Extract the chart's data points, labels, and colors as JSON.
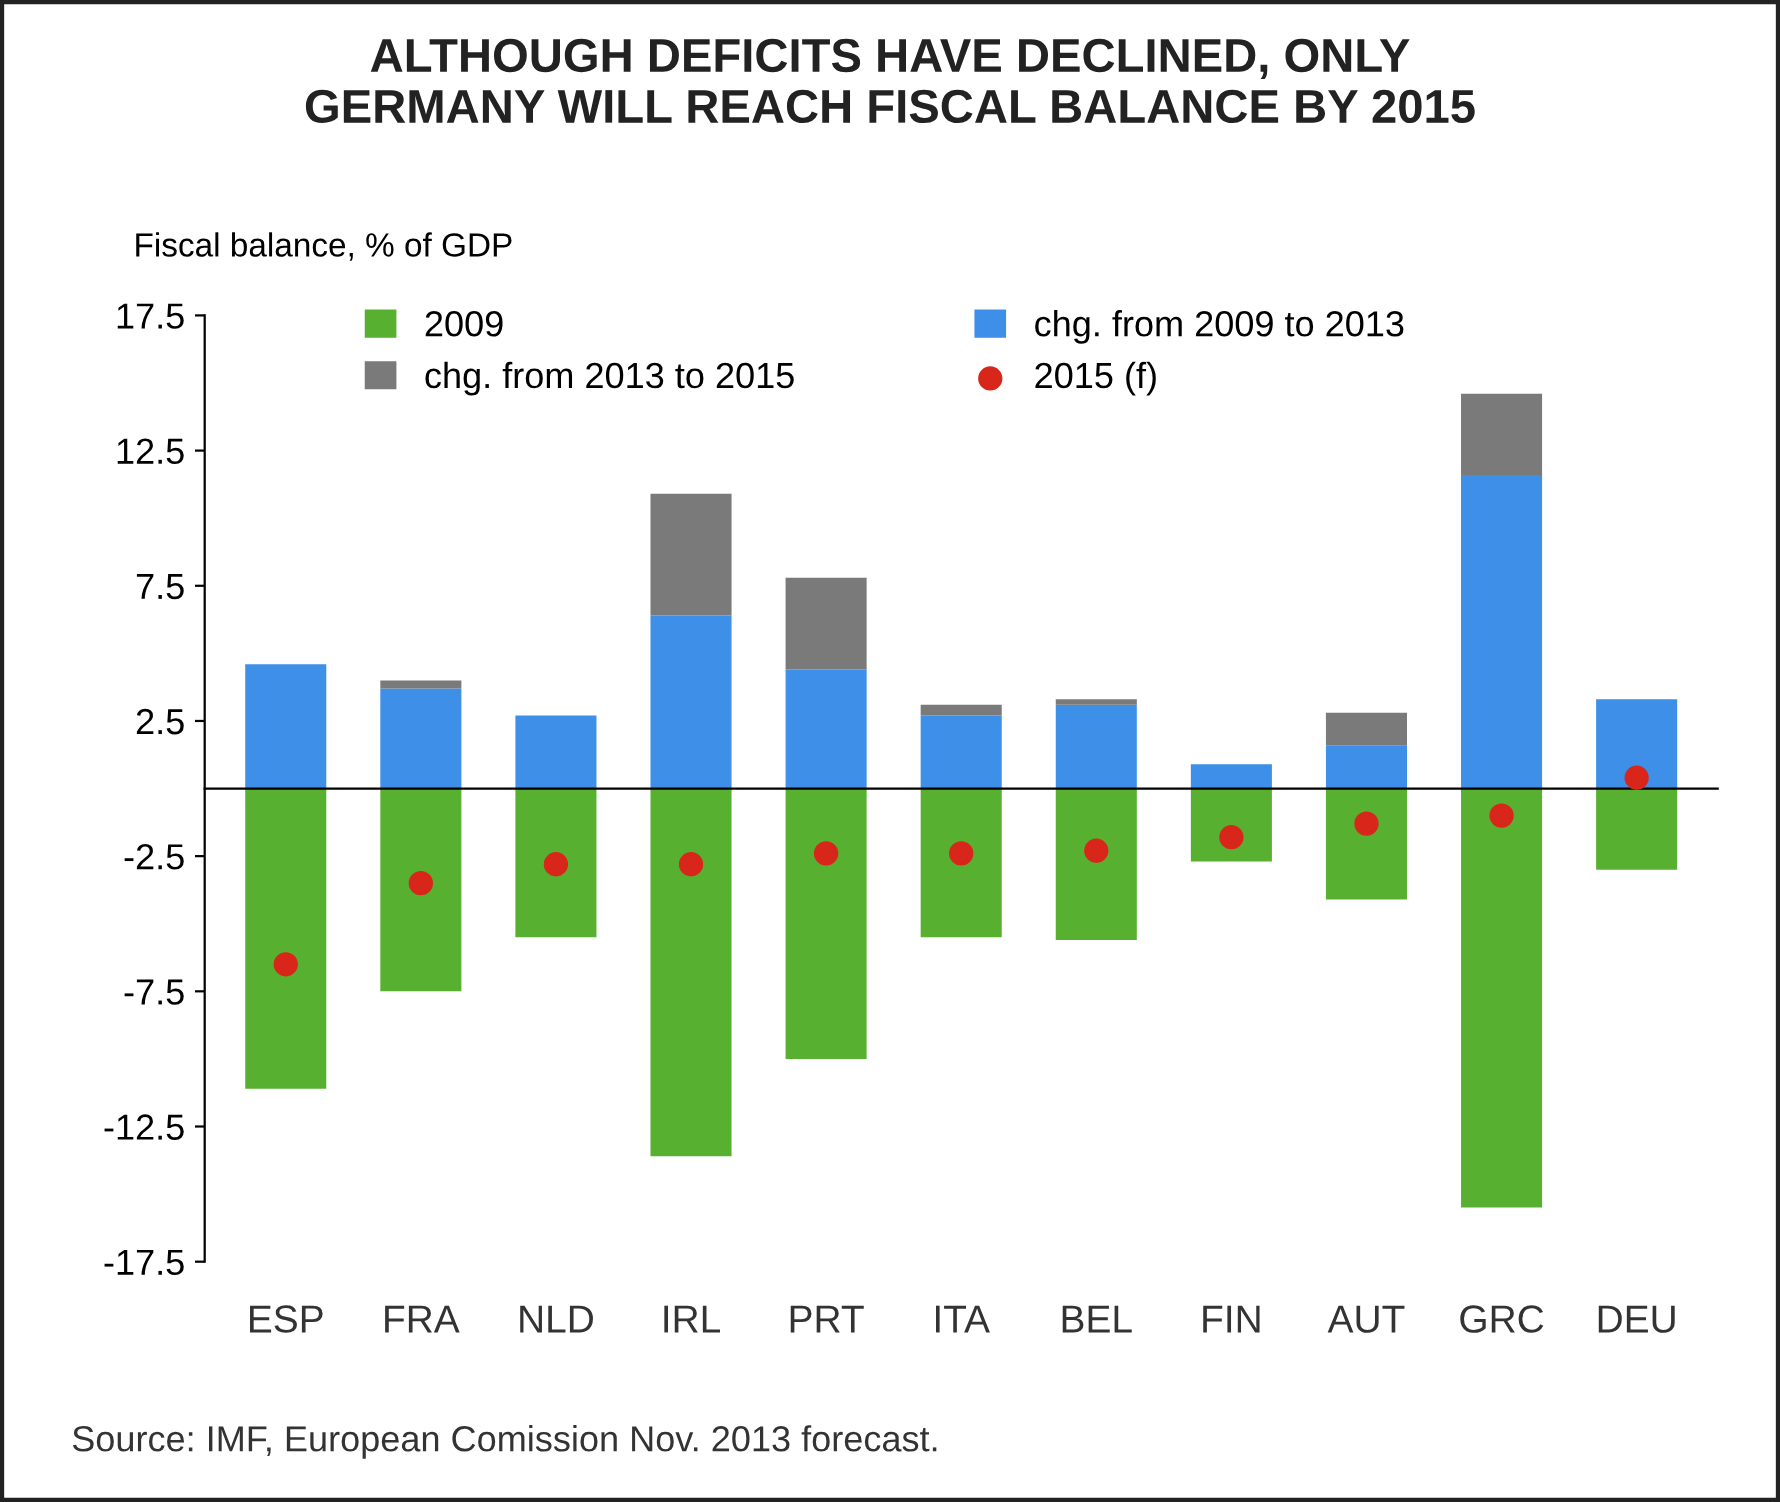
{
  "chart_data": {
    "type": "bar",
    "stacked": true,
    "title": "ALTHOUGH DEFICITS HAVE DECLINED, ONLY\nGERMANY WILL REACH FISCAL BALANCE BY 2015",
    "ylabel": "Fiscal balance, % of GDP",
    "categories": [
      "ESP",
      "FRA",
      "NLD",
      "IRL",
      "PRT",
      "ITA",
      "BEL",
      "FIN",
      "AUT",
      "GRC",
      "DEU"
    ],
    "series": [
      {
        "name": "2009",
        "color": "#58b031",
        "values": [
          -11.1,
          -7.5,
          -5.5,
          -13.6,
          -10.0,
          -5.5,
          -5.6,
          -2.7,
          -4.1,
          -15.5,
          -3.0
        ]
      },
      {
        "name": "chg. from 2009 to 2013",
        "color": "#3d8fe8",
        "values": [
          4.6,
          3.7,
          2.7,
          6.4,
          4.4,
          2.7,
          3.1,
          0.9,
          1.6,
          11.6,
          3.3
        ]
      },
      {
        "name": "chg. from 2013 to 2015",
        "color": "#7a7a7a",
        "values": [
          null,
          0.3,
          null,
          4.5,
          3.4,
          0.4,
          0.2,
          null,
          1.2,
          3.0,
          null
        ]
      },
      {
        "name": "2015 (f)",
        "type": "scatter",
        "color": "#d8261a",
        "x": [
          "ESP",
          "FRA",
          "NLD",
          "IRL",
          "PRT",
          "ITA",
          "BEL",
          "FIN",
          "AUT",
          "GRC",
          "DEU"
        ],
        "values": [
          -6.5,
          -3.5,
          -2.8,
          -2.8,
          -2.4,
          -2.4,
          -2.3,
          -1.8,
          -1.3,
          -1.0,
          0.4
        ]
      }
    ],
    "ylim": [
      -17.5,
      17.5
    ],
    "yticks": [
      -17.5,
      -12.5,
      -7.5,
      -2.5,
      2.5,
      7.5,
      12.5,
      17.5
    ],
    "grid": false,
    "legend": "top",
    "marker": "circle",
    "annotations": [
      "Source: IMF, European Comission Nov. 2013 forecast."
    ]
  }
}
